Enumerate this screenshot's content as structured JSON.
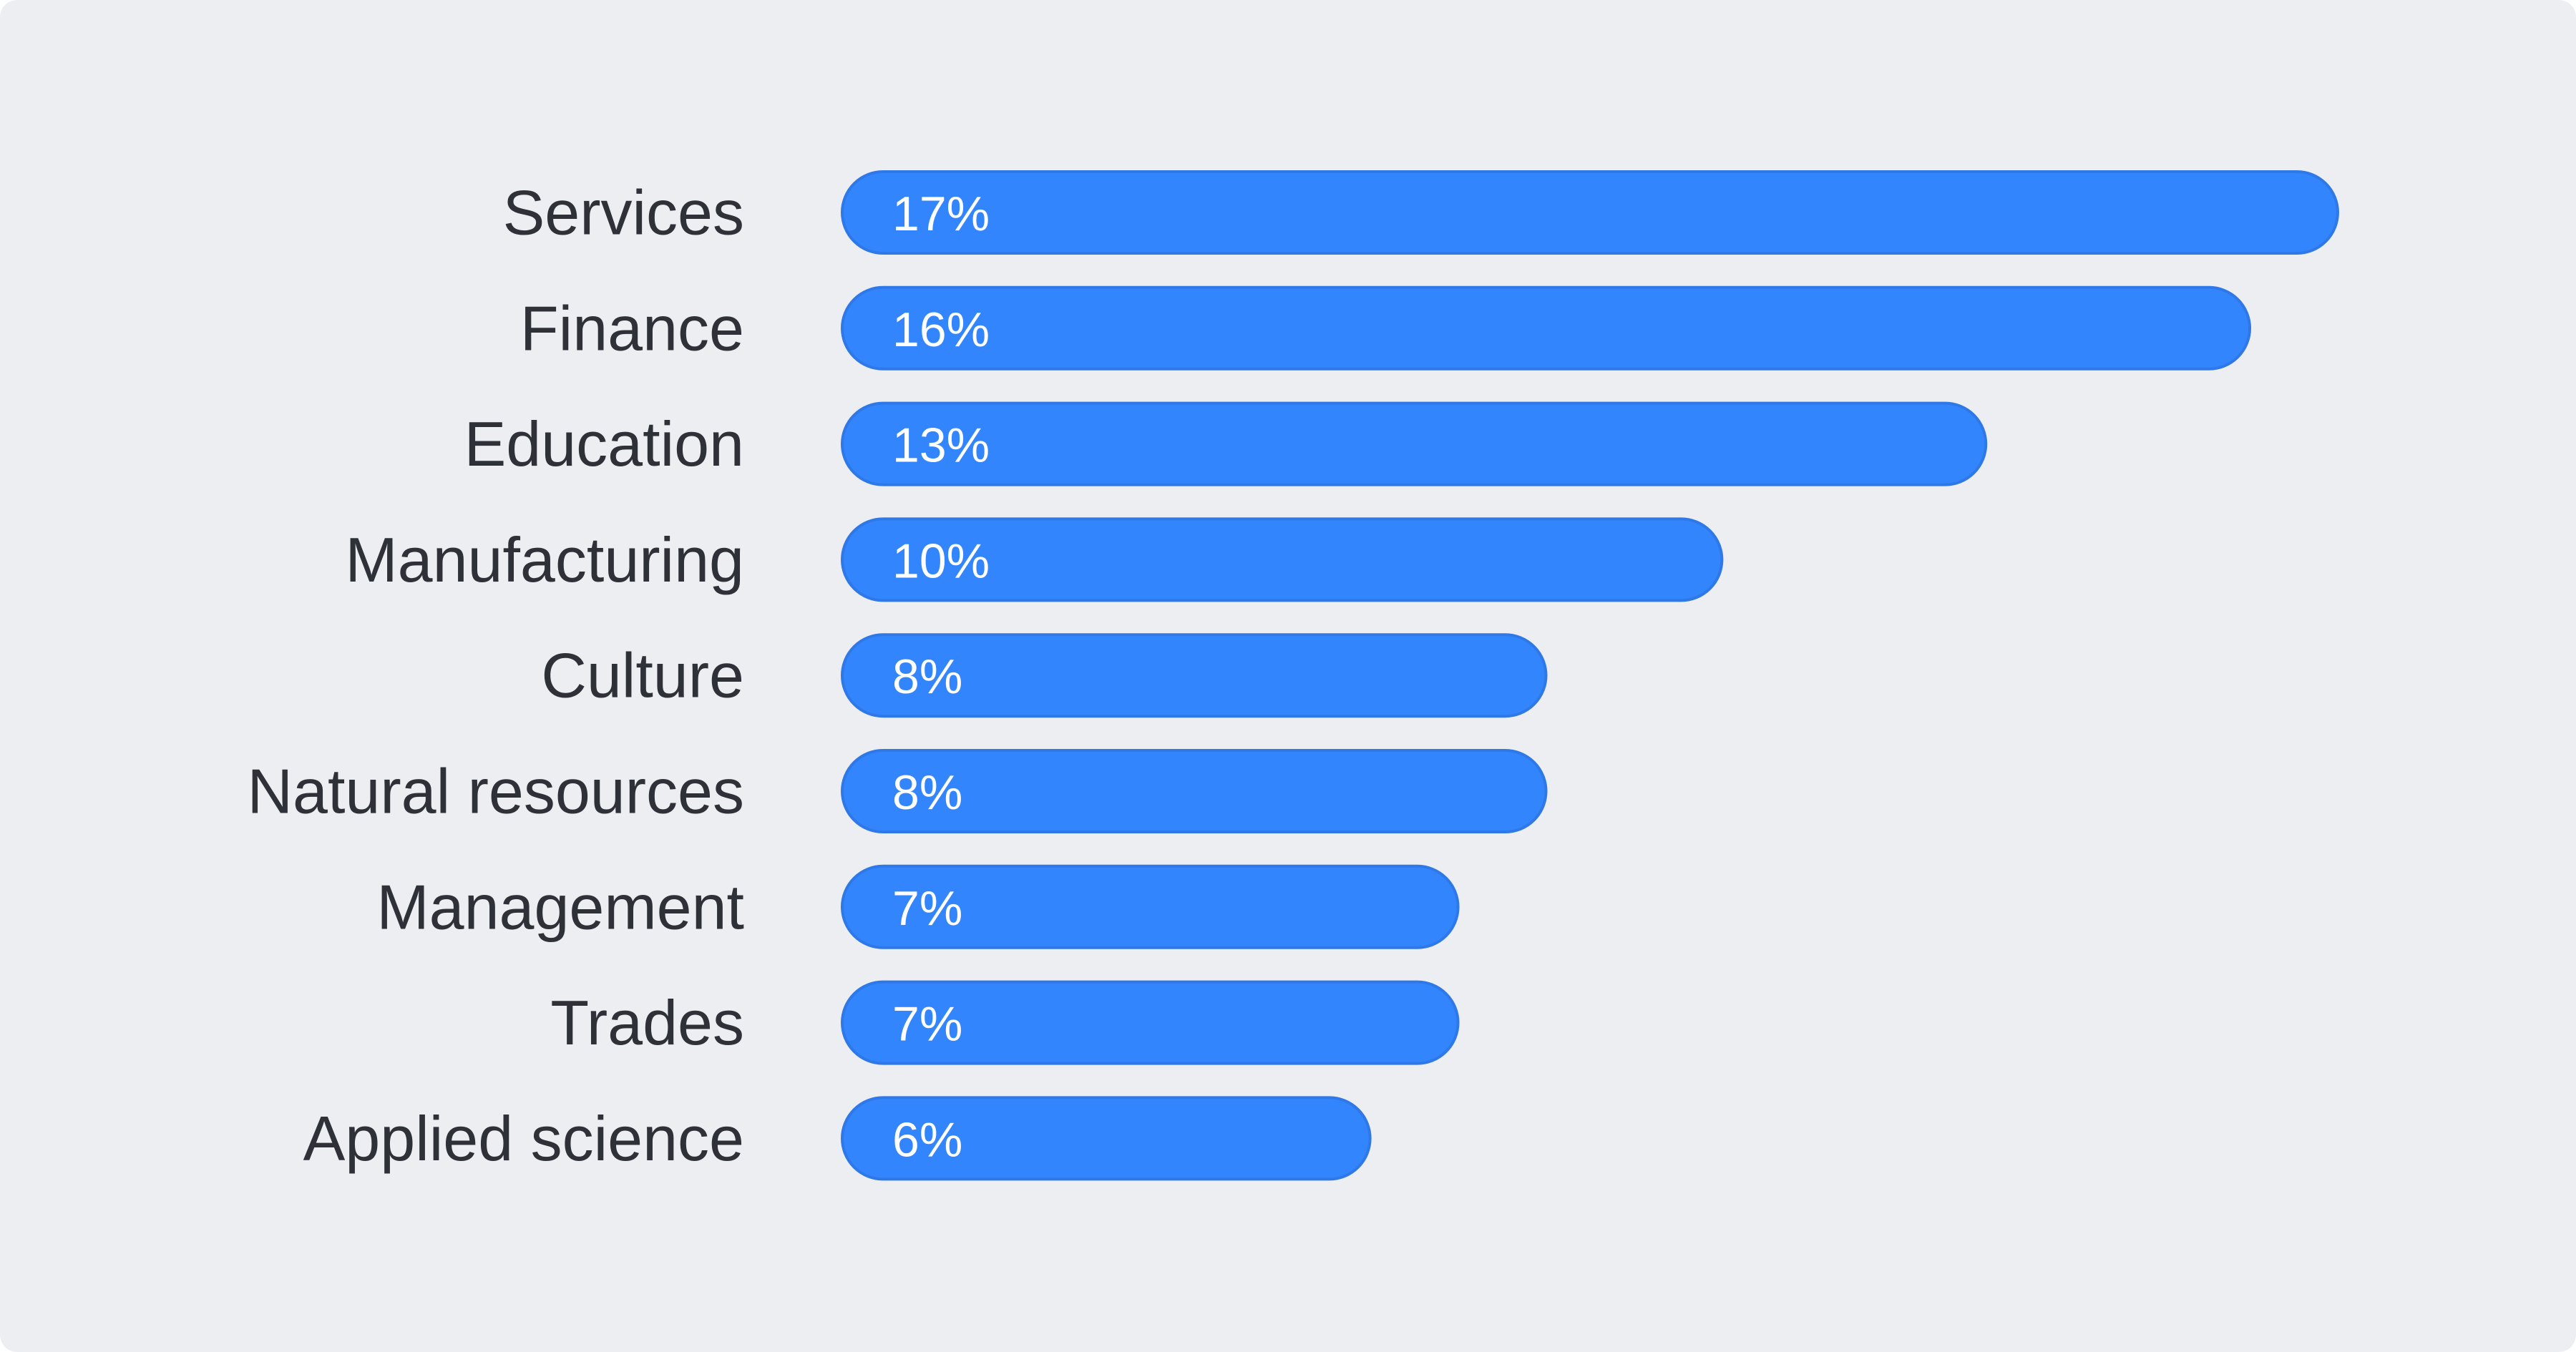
{
  "chart_data": {
    "type": "bar",
    "orientation": "horizontal",
    "categories": [
      "Services",
      "Finance",
      "Education",
      "Manufacturing",
      "Culture",
      "Natural resources",
      "Management",
      "Trades",
      "Applied science"
    ],
    "values": [
      17,
      16,
      13,
      10,
      8,
      8,
      7,
      7,
      6
    ],
    "value_labels": [
      "17%",
      "16%",
      "13%",
      "10%",
      "8%",
      "8%",
      "7%",
      "7%",
      "6%"
    ],
    "unit": "%",
    "xlim": [
      0,
      17
    ],
    "grid": false,
    "legend": "none",
    "colors": {
      "bar": "#3385fd",
      "bar_edge": "#2f78e8",
      "background": "#edeef2",
      "category_text": "#2e3138",
      "value_text": "#ffffff"
    }
  }
}
